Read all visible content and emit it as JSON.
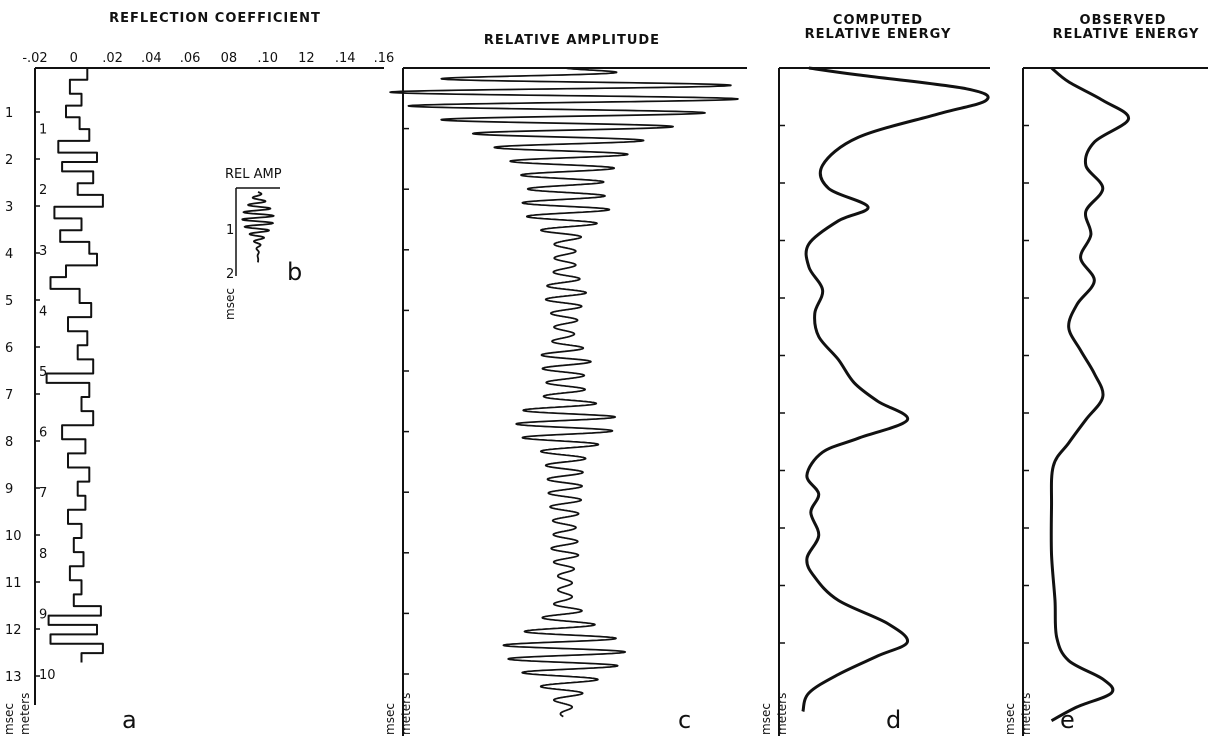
{
  "chart_data": [
    {
      "panel": "a",
      "type": "line",
      "title": "REFLECTION COEFFICIENT",
      "x_ticks": [
        "-.02",
        "0",
        ".02",
        ".04",
        ".06",
        "08",
        ".10",
        "12",
        ".14",
        ".16"
      ],
      "xlim": [
        -0.02,
        0.16
      ],
      "ylim_msec": [
        0,
        13
      ],
      "msec_ticks": [
        "1",
        "2",
        "3",
        "4",
        "5",
        "6",
        "7",
        "8",
        "9",
        "10",
        "11",
        "12",
        "13"
      ],
      "meters_ticks": [
        "1",
        "2",
        "3",
        "4",
        "5",
        "6",
        "7",
        "8",
        "9",
        "10"
      ],
      "unit_msec": "msec",
      "unit_meters": "meters",
      "label": "a",
      "steps": [
        {
          "t": 0.0,
          "v": 0.007
        },
        {
          "t": 0.25,
          "v": -0.002
        },
        {
          "t": 0.55,
          "v": 0.004
        },
        {
          "t": 0.8,
          "v": -0.004
        },
        {
          "t": 1.05,
          "v": 0.003
        },
        {
          "t": 1.3,
          "v": 0.008
        },
        {
          "t": 1.55,
          "v": -0.008
        },
        {
          "t": 1.8,
          "v": 0.012
        },
        {
          "t": 2.0,
          "v": -0.006
        },
        {
          "t": 2.2,
          "v": 0.01
        },
        {
          "t": 2.45,
          "v": 0.002
        },
        {
          "t": 2.7,
          "v": 0.015
        },
        {
          "t": 2.95,
          "v": -0.01
        },
        {
          "t": 3.2,
          "v": 0.004
        },
        {
          "t": 3.45,
          "v": -0.007
        },
        {
          "t": 3.7,
          "v": 0.008
        },
        {
          "t": 3.95,
          "v": 0.012
        },
        {
          "t": 4.2,
          "v": -0.004
        },
        {
          "t": 4.45,
          "v": -0.012
        },
        {
          "t": 4.7,
          "v": 0.003
        },
        {
          "t": 5.0,
          "v": 0.009
        },
        {
          "t": 5.3,
          "v": -0.003
        },
        {
          "t": 5.6,
          "v": 0.007
        },
        {
          "t": 5.9,
          "v": 0.002
        },
        {
          "t": 6.2,
          "v": 0.01
        },
        {
          "t": 6.5,
          "v": -0.014
        },
        {
          "t": 6.7,
          "v": 0.008
        },
        {
          "t": 7.0,
          "v": 0.004
        },
        {
          "t": 7.3,
          "v": 0.01
        },
        {
          "t": 7.6,
          "v": -0.006
        },
        {
          "t": 7.9,
          "v": 0.006
        },
        {
          "t": 8.2,
          "v": -0.003
        },
        {
          "t": 8.5,
          "v": 0.008
        },
        {
          "t": 8.8,
          "v": 0.002
        },
        {
          "t": 9.1,
          "v": 0.006
        },
        {
          "t": 9.4,
          "v": -0.003
        },
        {
          "t": 9.7,
          "v": 0.004
        },
        {
          "t": 10.0,
          "v": 0.0
        },
        {
          "t": 10.3,
          "v": 0.005
        },
        {
          "t": 10.6,
          "v": -0.002
        },
        {
          "t": 10.9,
          "v": 0.004
        },
        {
          "t": 11.2,
          "v": 0.0
        },
        {
          "t": 11.45,
          "v": 0.014
        },
        {
          "t": 11.65,
          "v": -0.013
        },
        {
          "t": 11.85,
          "v": 0.012
        },
        {
          "t": 12.05,
          "v": -0.012
        },
        {
          "t": 12.25,
          "v": 0.015
        },
        {
          "t": 12.45,
          "v": 0.004
        }
      ]
    },
    {
      "panel": "b",
      "type": "line",
      "title": "REL AMP",
      "msec_ticks": [
        "1",
        "2"
      ],
      "unit_msec": "msec",
      "label": "b",
      "wavelet": {
        "cycles": 6,
        "peak_msec": 0.6,
        "length_msec": 2.0
      }
    },
    {
      "panel": "c",
      "type": "line",
      "title": "RELATIVE AMPLITUDE",
      "unit_msec": "msec",
      "unit_meters": "meters",
      "label": "c",
      "envelope": [
        {
          "t": 0.0,
          "a": 0.05
        },
        {
          "t": 0.3,
          "a": 0.9
        },
        {
          "t": 0.6,
          "a": 1.0
        },
        {
          "t": 1.0,
          "a": 0.75
        },
        {
          "t": 1.5,
          "a": 0.45
        },
        {
          "t": 2.0,
          "a": 0.3
        },
        {
          "t": 2.5,
          "a": 0.2
        },
        {
          "t": 3.0,
          "a": 0.25
        },
        {
          "t": 3.3,
          "a": 0.18
        },
        {
          "t": 3.7,
          "a": 0.06
        },
        {
          "t": 4.3,
          "a": 0.06
        },
        {
          "t": 4.8,
          "a": 0.12
        },
        {
          "t": 5.2,
          "a": 0.08
        },
        {
          "t": 5.7,
          "a": 0.05
        },
        {
          "t": 6.2,
          "a": 0.15
        },
        {
          "t": 6.6,
          "a": 0.1
        },
        {
          "t": 7.0,
          "a": 0.12
        },
        {
          "t": 7.4,
          "a": 0.28
        },
        {
          "t": 7.8,
          "a": 0.26
        },
        {
          "t": 8.2,
          "a": 0.12
        },
        {
          "t": 8.6,
          "a": 0.1
        },
        {
          "t": 9.2,
          "a": 0.09
        },
        {
          "t": 9.8,
          "a": 0.06
        },
        {
          "t": 10.3,
          "a": 0.08
        },
        {
          "t": 10.8,
          "a": 0.04
        },
        {
          "t": 11.3,
          "a": 0.04
        },
        {
          "t": 11.8,
          "a": 0.15
        },
        {
          "t": 12.3,
          "a": 0.35
        },
        {
          "t": 12.7,
          "a": 0.3
        },
        {
          "t": 13.1,
          "a": 0.15
        },
        {
          "t": 13.5,
          "a": 0.05
        },
        {
          "t": 13.8,
          "a": 0.02
        }
      ]
    },
    {
      "panel": "d",
      "type": "line",
      "title": "COMPUTED",
      "subtitle": "RELATIVE ENERGY",
      "unit_msec": "msec",
      "unit_meters": "meters",
      "label": "d",
      "curve": [
        {
          "t": 0.0,
          "e": 0.05
        },
        {
          "t": 0.15,
          "e": 0.3
        },
        {
          "t": 0.45,
          "e": 0.85
        },
        {
          "t": 0.7,
          "e": 0.95
        },
        {
          "t": 1.0,
          "e": 0.7
        },
        {
          "t": 1.5,
          "e": 0.3
        },
        {
          "t": 2.1,
          "e": 0.12
        },
        {
          "t": 2.6,
          "e": 0.15
        },
        {
          "t": 3.0,
          "e": 0.35
        },
        {
          "t": 3.3,
          "e": 0.2
        },
        {
          "t": 3.8,
          "e": 0.05
        },
        {
          "t": 4.3,
          "e": 0.05
        },
        {
          "t": 4.8,
          "e": 0.12
        },
        {
          "t": 5.3,
          "e": 0.08
        },
        {
          "t": 5.8,
          "e": 0.1
        },
        {
          "t": 6.3,
          "e": 0.2
        },
        {
          "t": 6.8,
          "e": 0.28
        },
        {
          "t": 7.2,
          "e": 0.4
        },
        {
          "t": 7.6,
          "e": 0.55
        },
        {
          "t": 8.0,
          "e": 0.3
        },
        {
          "t": 8.3,
          "e": 0.12
        },
        {
          "t": 8.8,
          "e": 0.04
        },
        {
          "t": 9.2,
          "e": 0.1
        },
        {
          "t": 9.6,
          "e": 0.06
        },
        {
          "t": 10.1,
          "e": 0.1
        },
        {
          "t": 10.6,
          "e": 0.04
        },
        {
          "t": 11.0,
          "e": 0.08
        },
        {
          "t": 11.5,
          "e": 0.2
        },
        {
          "t": 12.0,
          "e": 0.45
        },
        {
          "t": 12.4,
          "e": 0.55
        },
        {
          "t": 12.7,
          "e": 0.4
        },
        {
          "t": 13.1,
          "e": 0.2
        },
        {
          "t": 13.5,
          "e": 0.05
        },
        {
          "t": 13.9,
          "e": 0.02
        }
      ]
    },
    {
      "panel": "e",
      "type": "line",
      "title": "OBSERVED",
      "subtitle": "RELATIVE ENERGY",
      "unit_msec": "msec",
      "unit_meters": "meters",
      "label": "e",
      "curve": [
        {
          "t": 0.0,
          "e": 0.05
        },
        {
          "t": 0.3,
          "e": 0.15
        },
        {
          "t": 0.7,
          "e": 0.35
        },
        {
          "t": 1.1,
          "e": 0.5
        },
        {
          "t": 1.6,
          "e": 0.3
        },
        {
          "t": 2.1,
          "e": 0.25
        },
        {
          "t": 2.6,
          "e": 0.35
        },
        {
          "t": 3.1,
          "e": 0.25
        },
        {
          "t": 3.6,
          "e": 0.28
        },
        {
          "t": 4.1,
          "e": 0.22
        },
        {
          "t": 4.6,
          "e": 0.3
        },
        {
          "t": 5.1,
          "e": 0.2
        },
        {
          "t": 5.6,
          "e": 0.15
        },
        {
          "t": 6.1,
          "e": 0.22
        },
        {
          "t": 6.6,
          "e": 0.3
        },
        {
          "t": 7.1,
          "e": 0.35
        },
        {
          "t": 7.6,
          "e": 0.25
        },
        {
          "t": 8.1,
          "e": 0.15
        },
        {
          "t": 8.6,
          "e": 0.06
        },
        {
          "t": 9.5,
          "e": 0.05
        },
        {
          "t": 10.5,
          "e": 0.05
        },
        {
          "t": 11.5,
          "e": 0.07
        },
        {
          "t": 12.3,
          "e": 0.08
        },
        {
          "t": 12.8,
          "e": 0.15
        },
        {
          "t": 13.2,
          "e": 0.35
        },
        {
          "t": 13.5,
          "e": 0.4
        },
        {
          "t": 13.8,
          "e": 0.2
        },
        {
          "t": 14.1,
          "e": 0.05
        }
      ]
    }
  ]
}
